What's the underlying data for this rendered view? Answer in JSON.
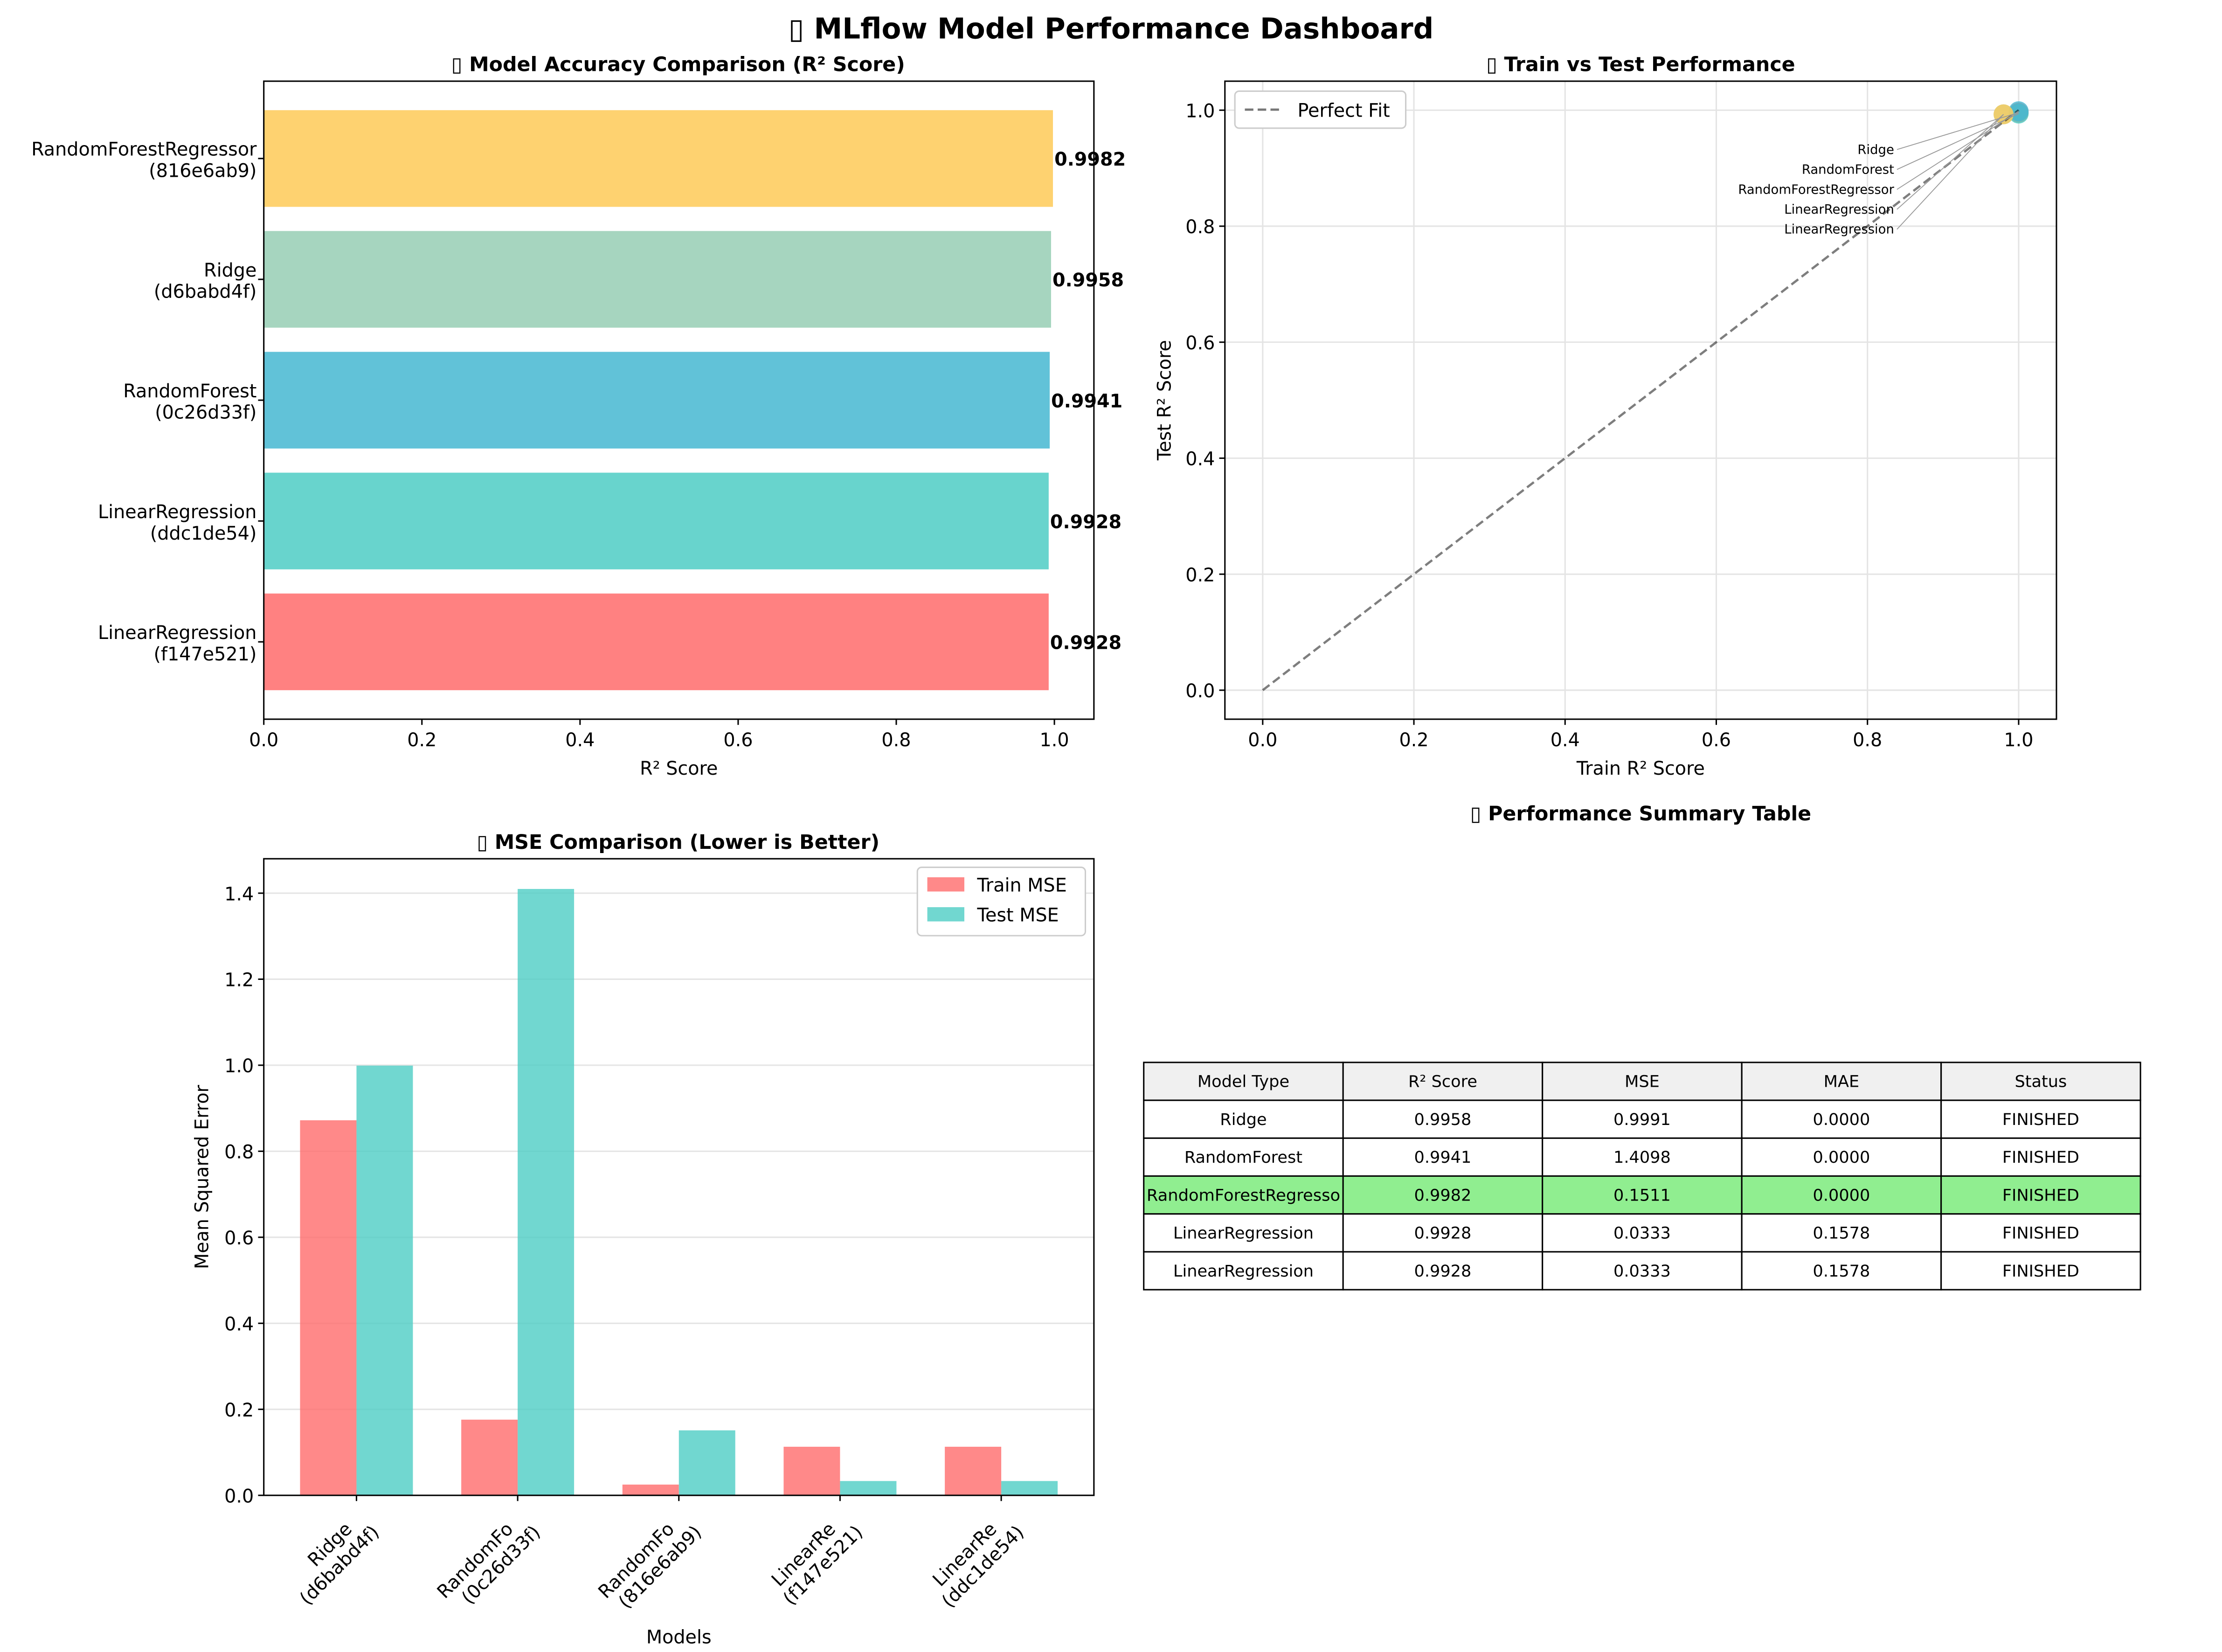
{
  "title": "▯ MLflow Model Performance Dashboard",
  "chart_data": [
    {
      "type": "bar",
      "orientation": "horizontal",
      "title": "▯ Model Accuracy Comparison (R² Score)",
      "xlabel": "R² Score",
      "xlim": [
        0,
        1.05
      ],
      "xticks": [
        "0.0",
        "0.2",
        "0.4",
        "0.6",
        "0.8",
        "1.0"
      ],
      "categories": [
        "LinearRegression\n(f147e521)",
        "LinearRegression\n(ddc1de54)",
        "RandomForest\n(0c26d33f)",
        "Ridge\n(d6babd4f)",
        "RandomForestRegressor\n(816e6ab9)"
      ],
      "values": [
        0.9928,
        0.9928,
        0.9941,
        0.9958,
        0.9982
      ],
      "labels": [
        "0.9928",
        "0.9928",
        "0.9941",
        "0.9958",
        "0.9982"
      ],
      "colors": [
        "#FF6B6B",
        "#4ECDC4",
        "#45B7D1",
        "#96CEB4",
        "#FECA57"
      ]
    },
    {
      "type": "scatter",
      "title": "▯ Train vs Test Performance",
      "xlabel": "Train R² Score",
      "ylabel": "Test R² Score",
      "xlim": [
        -0.05,
        1.05
      ],
      "ylim": [
        -0.05,
        1.05
      ],
      "xticks": [
        "0.0",
        "0.2",
        "0.4",
        "0.6",
        "0.8",
        "1.0"
      ],
      "yticks": [
        "0.0",
        "0.2",
        "0.4",
        "0.6",
        "0.8",
        "1.0"
      ],
      "grid": true,
      "legend": {
        "position": "top-left",
        "entries": [
          "Perfect Fit"
        ]
      },
      "points": [
        {
          "label": "Ridge",
          "x": 1.0,
          "y": 0.9958,
          "color": "#FF6B6B"
        },
        {
          "label": "RandomForest",
          "x": 1.0,
          "y": 0.9941,
          "color": "#4ECDC4"
        },
        {
          "label": "RandomForestRegressor",
          "x": 1.0,
          "y": 0.9982,
          "color": "#45B7D1"
        },
        {
          "label": "LinearRegression",
          "x": 0.98,
          "y": 0.9928,
          "color": "#96CEB4"
        },
        {
          "label": "LinearRegression",
          "x": 0.98,
          "y": 0.9928,
          "color": "#FECA57"
        }
      ]
    },
    {
      "type": "bar",
      "title": "▯ MSE Comparison (Lower is Better)",
      "xlabel": "Models",
      "ylabel": "Mean Squared Error",
      "ylim": [
        0,
        1.48
      ],
      "yticks": [
        "0.0",
        "0.2",
        "0.4",
        "0.6",
        "0.8",
        "1.0",
        "1.2",
        "1.4"
      ],
      "grid": true,
      "legend": {
        "position": "top-right"
      },
      "categories": [
        "Ridge\n(d6babd4f)",
        "RandomFo\n(0c26d33f)",
        "RandomFo\n(816e6ab9)",
        "LinearRe\n(f147e521)",
        "LinearRe\n(ddc1de54)"
      ],
      "series": [
        {
          "name": "Train MSE",
          "color": "#FF6B6B",
          "values": [
            0.872,
            0.176,
            0.025,
            0.113,
            0.113
          ]
        },
        {
          "name": "Test MSE",
          "color": "#4ECDC4",
          "values": [
            0.9991,
            1.4098,
            0.1511,
            0.0333,
            0.0333
          ]
        }
      ]
    },
    {
      "type": "table",
      "title": "▯ Performance Summary Table",
      "columns": [
        "Model Type",
        "R² Score",
        "MSE",
        "MAE",
        "Status"
      ],
      "rows": [
        [
          "Ridge",
          "0.9958",
          "0.9991",
          "0.0000",
          "FINISHED"
        ],
        [
          "RandomForest",
          "0.9941",
          "1.4098",
          "0.0000",
          "FINISHED"
        ],
        [
          "RandomForestRegresso",
          "0.9982",
          "0.1511",
          "0.0000",
          "FINISHED"
        ],
        [
          "LinearRegression",
          "0.9928",
          "0.0333",
          "0.1578",
          "FINISHED"
        ],
        [
          "LinearRegression",
          "0.9928",
          "0.0333",
          "0.1578",
          "FINISHED"
        ]
      ],
      "highlight_row": 2,
      "highlight_color": "#90EE90",
      "header_color": "#F0F0F0"
    }
  ]
}
